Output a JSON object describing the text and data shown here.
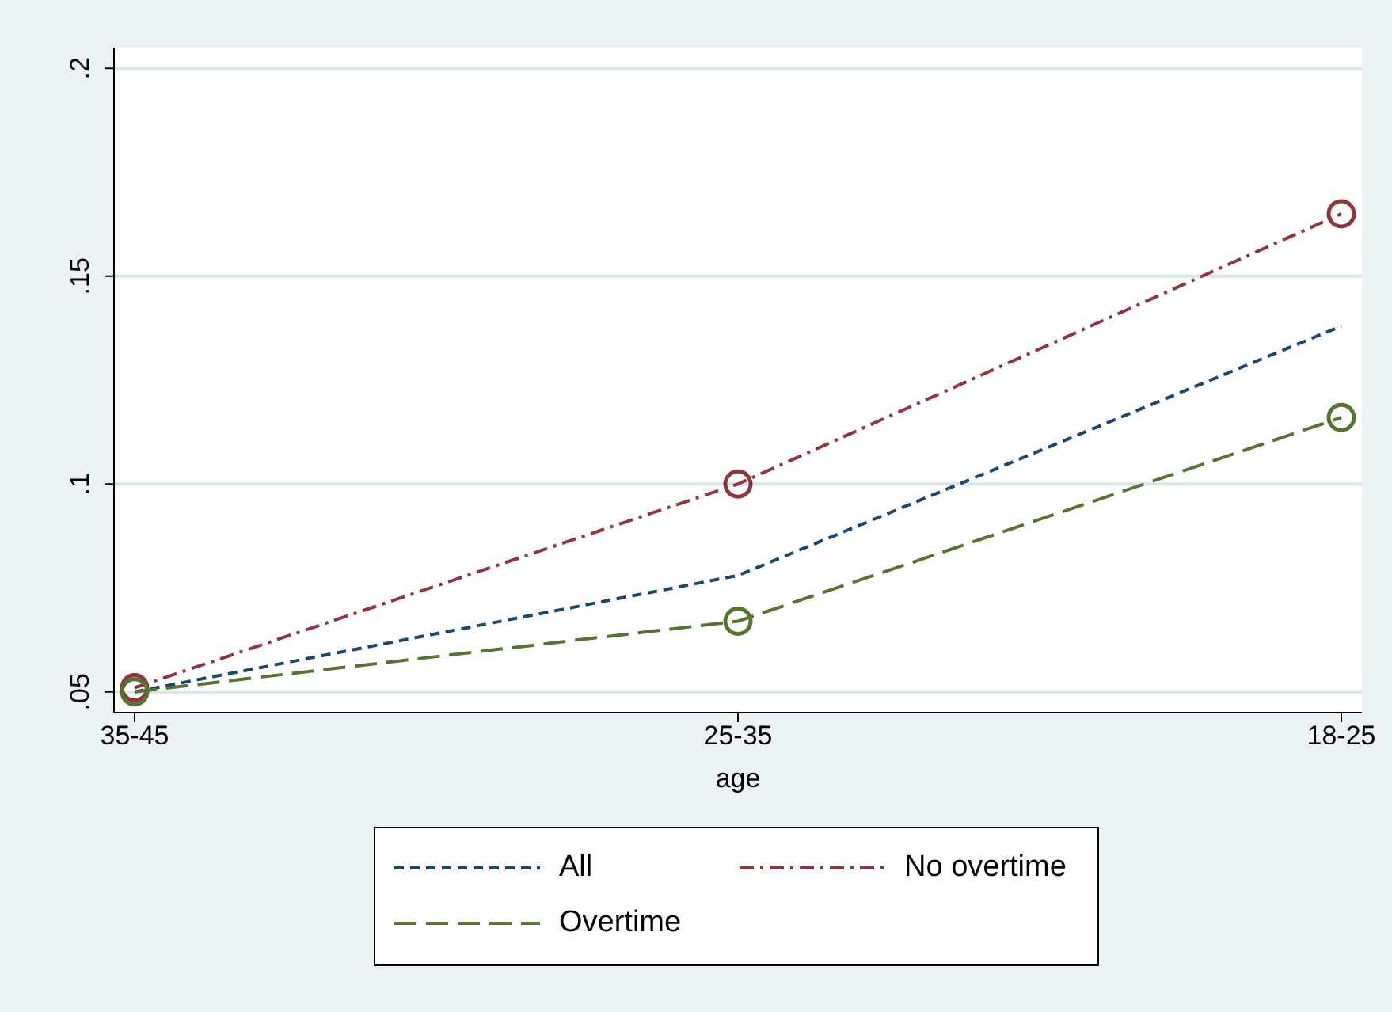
{
  "chart_data": {
    "type": "line",
    "xlabel": "age",
    "categories": [
      "35-45",
      "25-35",
      "18-25"
    ],
    "series": [
      {
        "name": "All",
        "color": "#1a476f",
        "values": [
          0.05,
          0.078,
          0.138
        ],
        "marker": "none",
        "line_style": "dashed"
      },
      {
        "name": "No overtime",
        "color": "#90353b",
        "values": [
          0.051,
          0.1,
          0.165
        ],
        "marker": "circle",
        "line_style": "dashdot"
      },
      {
        "name": "Overtime",
        "color": "#55752f",
        "values": [
          0.05,
          0.067,
          0.116
        ],
        "marker": "circle",
        "line_style": "longdash"
      }
    ],
    "ylim": [
      0.045,
      0.205
    ],
    "yticks": [
      {
        "value": 0.05,
        "label": ".05"
      },
      {
        "value": 0.1,
        "label": ".1"
      },
      {
        "value": 0.15,
        "label": ".15"
      },
      {
        "value": 0.2,
        "label": ".2"
      }
    ],
    "grid": "y",
    "legend": "bottom"
  }
}
